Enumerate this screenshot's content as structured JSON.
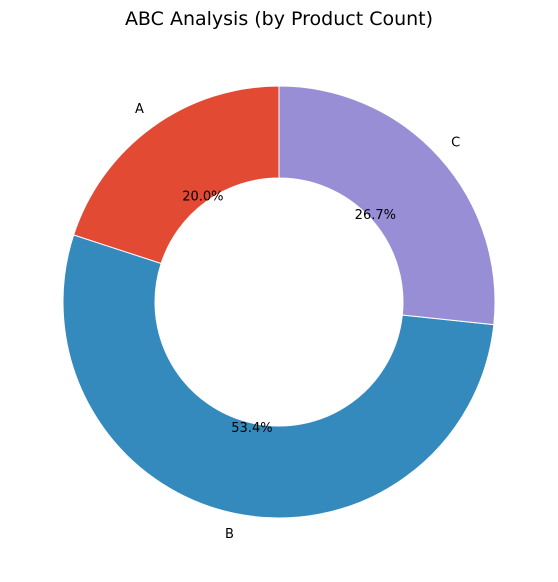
{
  "chart_data": {
    "type": "pie",
    "subtype": "donut",
    "title": "ABC Analysis (by Product Count)",
    "categories": [
      "A",
      "B",
      "C"
    ],
    "values": [
      20.0,
      53.4,
      26.7
    ],
    "value_labels": [
      "20.0%",
      "53.4%",
      "26.7%"
    ],
    "colors": [
      "#E24A33",
      "#348ABD",
      "#988ED5"
    ],
    "start_angle_deg": 90,
    "direction": "counterclockwise",
    "legend": "none"
  }
}
